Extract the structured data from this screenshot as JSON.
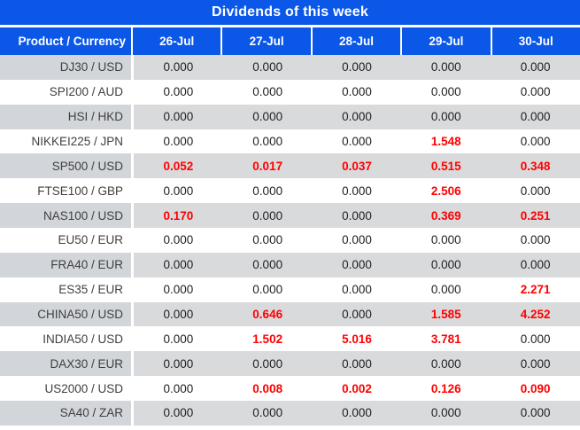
{
  "header": {
    "title": "Dividends of this week",
    "product_column": "Product / Currency",
    "dates": [
      "26-Jul",
      "27-Jul",
      "28-Jul",
      "29-Jul",
      "30-Jul"
    ]
  },
  "colors": {
    "header_blue": "#0b57e8",
    "row_gray_product": "#d2d5d9",
    "row_gray_data": "#d9dadc",
    "row_white": "#ffffff",
    "value_red": "#ff0000",
    "value_black": "#1f1f1f",
    "product_text": "#3f3f3f"
  },
  "table": {
    "rows": [
      {
        "product": "DJ30 / USD",
        "values": [
          "0.000",
          "0.000",
          "0.000",
          "0.000",
          "0.000"
        ]
      },
      {
        "product": "SPI200 / AUD",
        "values": [
          "0.000",
          "0.000",
          "0.000",
          "0.000",
          "0.000"
        ]
      },
      {
        "product": "HSI / HKD",
        "values": [
          "0.000",
          "0.000",
          "0.000",
          "0.000",
          "0.000"
        ]
      },
      {
        "product": "NIKKEI225 / JPN",
        "values": [
          "0.000",
          "0.000",
          "0.000",
          "1.548",
          "0.000"
        ]
      },
      {
        "product": "SP500 / USD",
        "values": [
          "0.052",
          "0.017",
          "0.037",
          "0.515",
          "0.348"
        ]
      },
      {
        "product": "FTSE100 / GBP",
        "values": [
          "0.000",
          "0.000",
          "0.000",
          "2.506",
          "0.000"
        ]
      },
      {
        "product": "NAS100 / USD",
        "values": [
          "0.170",
          "0.000",
          "0.000",
          "0.369",
          "0.251"
        ]
      },
      {
        "product": "EU50 / EUR",
        "values": [
          "0.000",
          "0.000",
          "0.000",
          "0.000",
          "0.000"
        ]
      },
      {
        "product": "FRA40 / EUR",
        "values": [
          "0.000",
          "0.000",
          "0.000",
          "0.000",
          "0.000"
        ]
      },
      {
        "product": "ES35 / EUR",
        "values": [
          "0.000",
          "0.000",
          "0.000",
          "0.000",
          "2.271"
        ]
      },
      {
        "product": "CHINA50 / USD",
        "values": [
          "0.000",
          "0.646",
          "0.000",
          "1.585",
          "4.252"
        ]
      },
      {
        "product": "INDIA50 / USD",
        "values": [
          "0.000",
          "1.502",
          "5.016",
          "3.781",
          "0.000"
        ]
      },
      {
        "product": "DAX30 / EUR",
        "values": [
          "0.000",
          "0.000",
          "0.000",
          "0.000",
          "0.000"
        ]
      },
      {
        "product": "US2000 / USD",
        "values": [
          "0.000",
          "0.008",
          "0.002",
          "0.126",
          "0.090"
        ]
      },
      {
        "product": "SA40 / ZAR",
        "values": [
          "0.000",
          "0.000",
          "0.000",
          "0.000",
          "0.000"
        ]
      }
    ]
  },
  "chart_data": {
    "type": "table",
    "title": "Dividends of this week",
    "columns": [
      "Product / Currency",
      "26-Jul",
      "27-Jul",
      "28-Jul",
      "29-Jul",
      "30-Jul"
    ],
    "rows": [
      [
        "DJ30 / USD",
        0.0,
        0.0,
        0.0,
        0.0,
        0.0
      ],
      [
        "SPI200 / AUD",
        0.0,
        0.0,
        0.0,
        0.0,
        0.0
      ],
      [
        "HSI / HKD",
        0.0,
        0.0,
        0.0,
        0.0,
        0.0
      ],
      [
        "NIKKEI225 / JPN",
        0.0,
        0.0,
        0.0,
        1.548,
        0.0
      ],
      [
        "SP500 / USD",
        0.052,
        0.017,
        0.037,
        0.515,
        0.348
      ],
      [
        "FTSE100 / GBP",
        0.0,
        0.0,
        0.0,
        2.506,
        0.0
      ],
      [
        "NAS100 / USD",
        0.17,
        0.0,
        0.0,
        0.369,
        0.251
      ],
      [
        "EU50 / EUR",
        0.0,
        0.0,
        0.0,
        0.0,
        0.0
      ],
      [
        "FRA40 / EUR",
        0.0,
        0.0,
        0.0,
        0.0,
        0.0
      ],
      [
        "ES35 / EUR",
        0.0,
        0.0,
        0.0,
        0.0,
        2.271
      ],
      [
        "CHINA50 / USD",
        0.0,
        0.646,
        0.0,
        1.585,
        4.252
      ],
      [
        "INDIA50 / USD",
        0.0,
        1.502,
        5.016,
        3.781,
        0.0
      ],
      [
        "DAX30 / EUR",
        0.0,
        0.0,
        0.0,
        0.0,
        0.0
      ],
      [
        "US2000 / USD",
        0.0,
        0.008,
        0.002,
        0.126,
        0.09
      ],
      [
        "SA40 / ZAR",
        0.0,
        0.0,
        0.0,
        0.0,
        0.0
      ]
    ],
    "value_format": "3 decimal places",
    "highlight_rule": "non-zero values rendered bold red"
  }
}
